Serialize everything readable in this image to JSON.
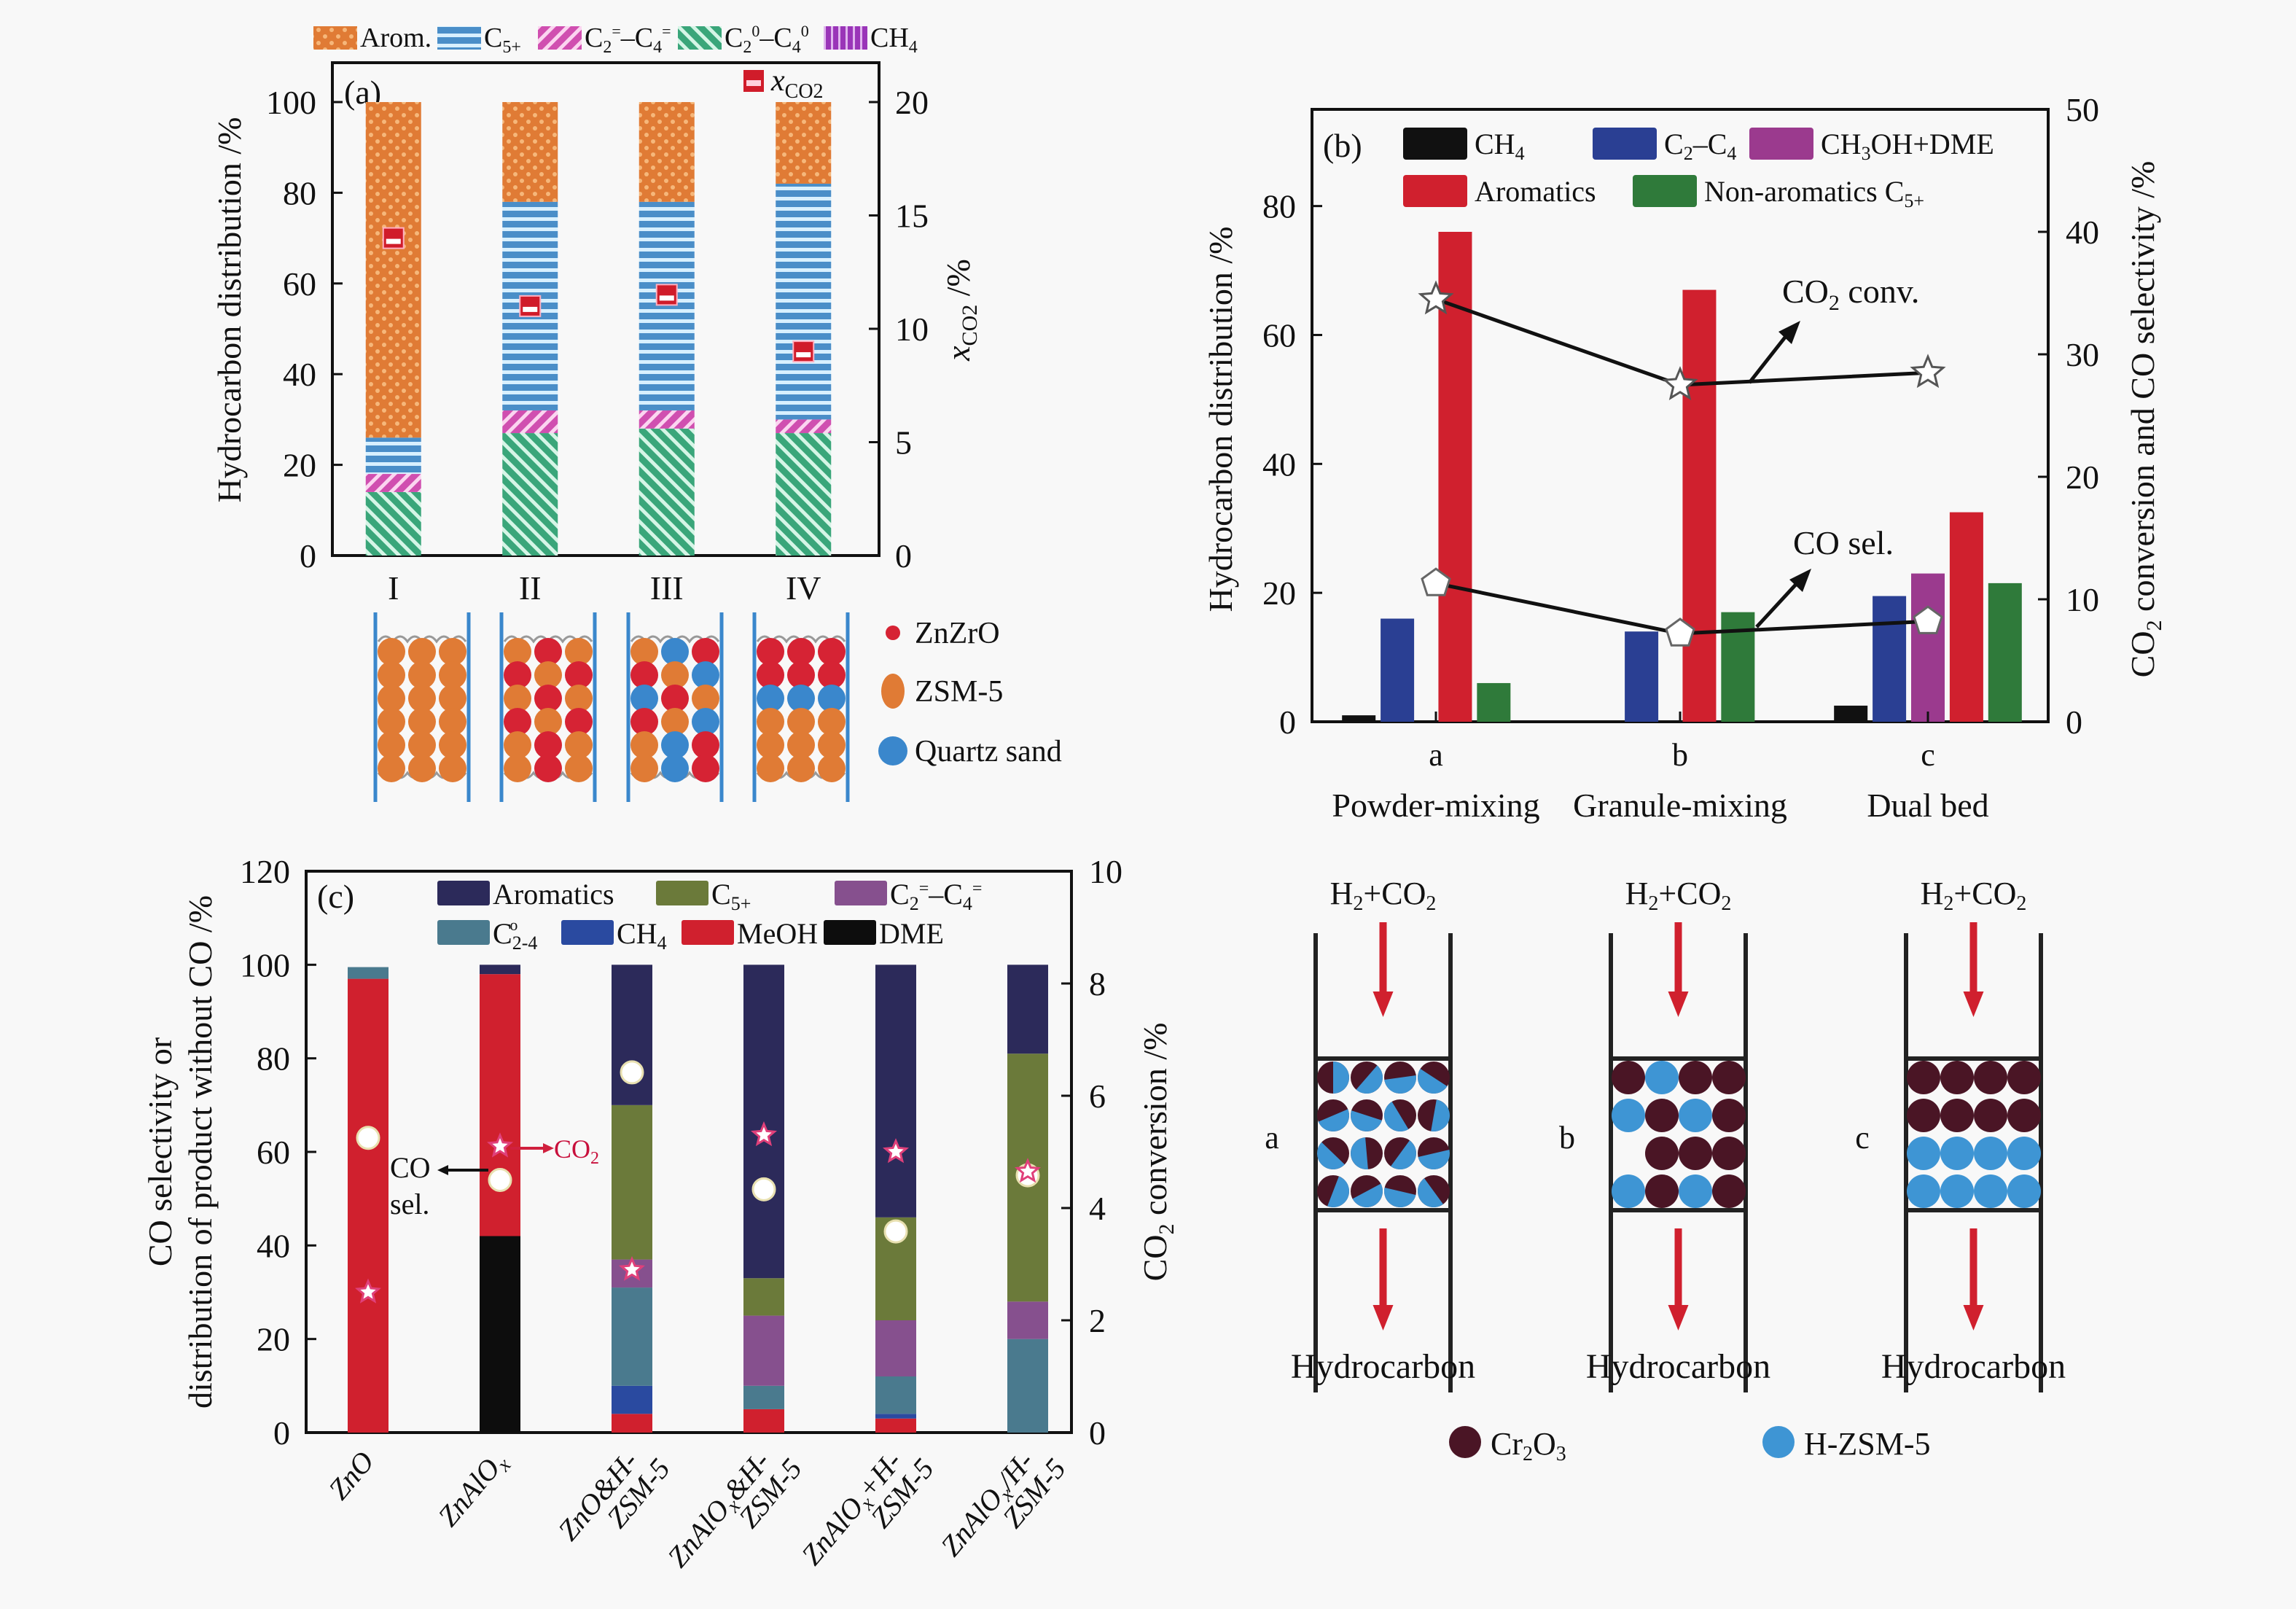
{
  "chart_data": [
    {
      "id": "a",
      "type": "bar",
      "stacked": true,
      "panel_label": "(a)",
      "categories": [
        "I",
        "II",
        "III",
        "IV"
      ],
      "ylabel": "Hydrocarbon distribution /%",
      "y2label": "x_CO2 /%",
      "ylim": [
        0,
        100
      ],
      "y2lim": [
        0,
        20
      ],
      "yticks": [
        0,
        20,
        40,
        60,
        80,
        100
      ],
      "y2ticks": [
        0,
        5,
        10,
        15,
        20
      ],
      "legend": [
        "Arom.",
        "C5+",
        "C2=–C4=",
        "C2o–C4o",
        "CH4"
      ],
      "legend_placement": "top",
      "series": [
        {
          "name": "C2o–C4o",
          "color": "#3aa67a",
          "values": [
            14,
            27,
            28,
            27
          ]
        },
        {
          "name": "C2=–C4=",
          "color": "#d04fb0",
          "values": [
            4,
            5,
            4,
            3
          ]
        },
        {
          "name": "C5+",
          "color": "#3d8fd6",
          "values": [
            8,
            46,
            46,
            52
          ]
        },
        {
          "name": "CH4",
          "color": "#9a35b8",
          "values": [
            0,
            0,
            0,
            0
          ]
        },
        {
          "name": "Arom.",
          "color": "#e07b35",
          "values": [
            74,
            22,
            22,
            18
          ]
        }
      ],
      "overlay": {
        "name": "x_CO2",
        "axis": "right",
        "color": "#d01c2a",
        "values": [
          14,
          11,
          11.5,
          9
        ]
      },
      "bed_legend": [
        "ZnZrO",
        "ZSM-5",
        "Quartz sand"
      ],
      "bed_legend_colors": [
        "#d62334",
        "#e07b35",
        "#3a87cc"
      ]
    },
    {
      "id": "b",
      "type": "bar",
      "grouped": true,
      "panel_label": "(b)",
      "categories": [
        "a",
        "b",
        "c"
      ],
      "category_names": [
        "Powder-mixing",
        "Granule-mixing",
        "Dual bed"
      ],
      "ylabel": "Hydrocarbon distribution /%",
      "y2label": "CO2 conversion and CO selectivity /%",
      "ylim": [
        0,
        95
      ],
      "y2lim": [
        0,
        50
      ],
      "yticks": [
        0,
        20,
        40,
        60,
        80
      ],
      "y2ticks": [
        0,
        10,
        20,
        30,
        40,
        50
      ],
      "legend": [
        "CH4",
        "C2–C4",
        "CH3OH+DME",
        "Aromatics",
        "Non-aromatics C5+"
      ],
      "legend_placement": "top",
      "series": [
        {
          "name": "CH4",
          "color": "#111111",
          "values": [
            1,
            0,
            2.5
          ]
        },
        {
          "name": "C2–C4",
          "color": "#2a3f93",
          "values": [
            16,
            14,
            19.5
          ]
        },
        {
          "name": "CH3OH+DME",
          "color": "#9b3a8e",
          "values": [
            0,
            0,
            23
          ]
        },
        {
          "name": "Aromatics",
          "color": "#d0202e",
          "values": [
            76,
            67,
            32.5
          ]
        },
        {
          "name": "Non-aromatics C5+",
          "color": "#2f7a3a",
          "values": [
            6,
            17,
            21.5
          ]
        }
      ],
      "lines": [
        {
          "name": "CO2 conv.",
          "marker": "star",
          "axis": "right",
          "values": [
            34.5,
            27.5,
            28.5
          ]
        },
        {
          "name": "CO sel.",
          "marker": "pentagon",
          "axis": "right",
          "values": [
            11.3,
            7.2,
            8.2
          ]
        }
      ],
      "annotations": [
        "CO2 conv.",
        "CO sel."
      ]
    },
    {
      "id": "c",
      "type": "bar",
      "stacked": true,
      "panel_label": "(c)",
      "categories": [
        "ZnO",
        "ZnAlOx",
        "ZnO&H-ZSM-5",
        "ZnAlOx&H-ZSM-5",
        "ZnAlOx+H-ZSM-5",
        "ZnAlOx/H-ZSM-5"
      ],
      "ylabel": "CO selectivity or distribution of product without CO /%",
      "y2label": "CO2 conversion /%",
      "ylim": [
        0,
        120
      ],
      "y2lim": [
        0,
        10
      ],
      "yticks": [
        0,
        20,
        40,
        60,
        80,
        100,
        120
      ],
      "y2ticks": [
        0,
        2,
        4,
        6,
        8,
        10
      ],
      "legend": [
        "Aromatics",
        "C5+",
        "C2=–C4=",
        "C2-4o",
        "CH4",
        "MeOH",
        "DME"
      ],
      "legend_placement": "top",
      "series": [
        {
          "name": "DME",
          "color": "#0d0d0d",
          "values": [
            0,
            42,
            0,
            0,
            0,
            0
          ]
        },
        {
          "name": "MeOH",
          "color": "#d0202e",
          "values": [
            97,
            56,
            4,
            5,
            3,
            0
          ]
        },
        {
          "name": "CH4",
          "color": "#2a4aa0",
          "values": [
            0,
            0,
            6,
            0,
            1,
            0
          ]
        },
        {
          "name": "C2-4o",
          "color": "#4a7a8e",
          "values": [
            2.5,
            0,
            21,
            5,
            8,
            20
          ]
        },
        {
          "name": "C2=–C4=",
          "color": "#86508e",
          "values": [
            0,
            0,
            6,
            15,
            12,
            8
          ]
        },
        {
          "name": "C5+",
          "color": "#6b7a3a",
          "values": [
            0,
            0,
            33,
            8,
            22,
            53
          ]
        },
        {
          "name": "Aromatics",
          "color": "#2c2a5a",
          "values": [
            0,
            2,
            30,
            67,
            54,
            19
          ]
        }
      ],
      "points": [
        {
          "name": "CO sel.",
          "marker": "circle",
          "axis": "left",
          "values": [
            63,
            54,
            77,
            52,
            43,
            55
          ]
        },
        {
          "name": "CO2 conv.",
          "marker": "star",
          "axis": "right",
          "values": [
            2.5,
            5.1,
            2.9,
            5.3,
            5.0,
            4.65
          ]
        }
      ],
      "annotations": [
        "CO sel.",
        "CO2"
      ]
    }
  ],
  "diagram_d": {
    "inlet": "H2+CO2",
    "outlet": "Hydrocarbon",
    "reactors": [
      "a",
      "b",
      "c"
    ],
    "legend": [
      "Cr2O3",
      "H-ZSM-5"
    ],
    "colors": {
      "cr2o3": "#4a1525",
      "hzsm5": "#3e95d4",
      "arrow": "#d0202e"
    }
  }
}
